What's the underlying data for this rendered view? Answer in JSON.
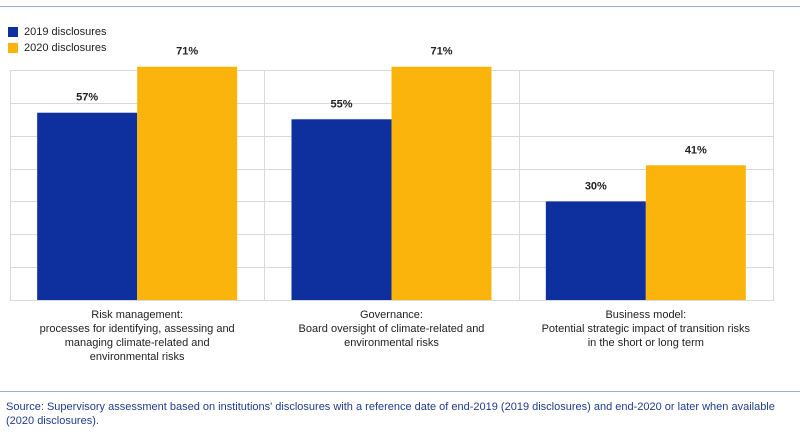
{
  "chart_data": {
    "type": "bar",
    "categories": [
      [
        "Risk management:",
        "processes for identifying, assessing and",
        "managing climate-related and",
        "environmental risks"
      ],
      [
        "Governance:",
        "Board oversight of climate-related and",
        "environmental risks"
      ],
      [
        "Business model:",
        "Potential strategic impact of transition risks",
        "in the short or long term"
      ]
    ],
    "series": [
      {
        "name": "2019 disclosures",
        "color": "#0e2f9e",
        "values": [
          57,
          55,
          30
        ],
        "labels": [
          "57%",
          "55%",
          "30%"
        ]
      },
      {
        "name": "2020 disclosures",
        "color": "#fbb40b",
        "values": [
          71,
          71,
          41
        ],
        "labels": [
          "71%",
          "71%",
          "41%"
        ]
      }
    ],
    "ylim": [
      0,
      70
    ],
    "grid": true,
    "legend": "top-left"
  },
  "source": "Source: Supervisory assessment based on institutions' disclosures with a reference date of end-2019 (2019 disclosures) and end-2020 or later when available (2020 disclosures)."
}
